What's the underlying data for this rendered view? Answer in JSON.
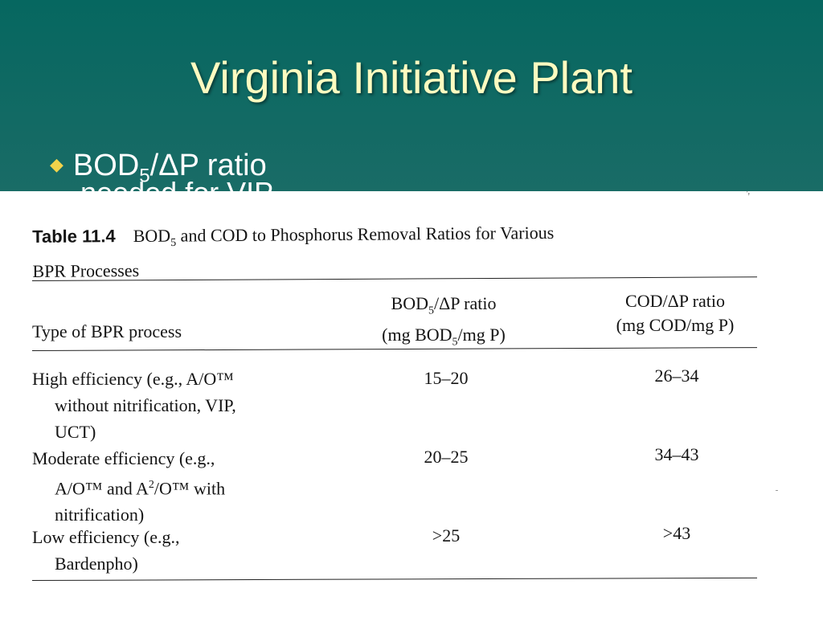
{
  "slide": {
    "title": "Virginia Initiative Plant",
    "bullet": {
      "glyph": "◆",
      "prefix": "BOD",
      "subscript": "5",
      "suffix": "/ΔP ratio",
      "partial_next_line": "needed for VIP"
    }
  },
  "table": {
    "number": "Table 11.4",
    "caption_lead": "BOD",
    "caption_sub": "5",
    "caption_rest": " and COD to Phosphorus Removal Ratios for Various",
    "caption_line2": "BPR Processes",
    "headers": {
      "process": "Type of BPR process",
      "bod_line1_lead": "BOD",
      "bod_line1_sub": "5",
      "bod_line1_rest": "/ΔP ratio",
      "bod_line2_lead": "(mg BOD",
      "bod_line2_sub": "5",
      "bod_line2_rest": "/mg P)",
      "cod_line1": "COD/ΔP ratio",
      "cod_line2": "(mg COD/mg P)"
    },
    "rows": [
      {
        "line1": "High efficiency (e.g., A/O™",
        "line2": "without nitrification, VIP,",
        "line3": "UCT)",
        "bod": "15–20",
        "cod": "26–34"
      },
      {
        "line1": "Moderate efficiency (e.g.,",
        "line2_lead": "A/O™ and A",
        "line2_sup": "2",
        "line2_rest": "/O™ with",
        "line3": "nitrification)",
        "bod": "20–25",
        "cod": "34–43"
      },
      {
        "line1": "Low efficiency (e.g.,",
        "line2": "Bardenpho)",
        "bod": ">25",
        "cod": ">43"
      }
    ],
    "scan_mark": "𝄒'"
  }
}
